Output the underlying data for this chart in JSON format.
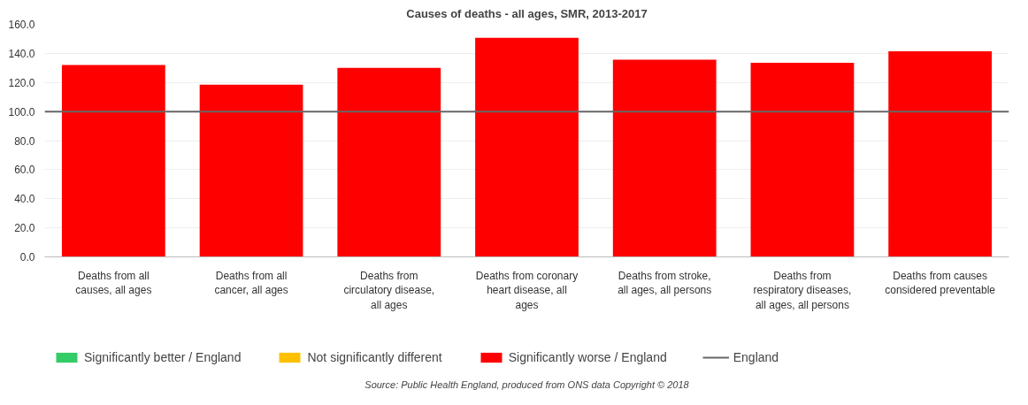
{
  "chart_data": {
    "type": "bar",
    "title": "Causes of deaths - all ages, SMR, 2013-2017",
    "categories": [
      "Deaths from all causes, all ages",
      "Deaths from all cancer, all ages",
      "Deaths from circulatory disease, all ages",
      "Deaths from coronary heart disease, all ages",
      "Deaths from stroke, all ages, all persons",
      "Deaths from respiratory diseases, all ages, all persons",
      "Deaths from causes considered preventable"
    ],
    "series": [
      {
        "name": "Significantly better / England",
        "color": "#33cc66",
        "values": [
          null,
          null,
          null,
          null,
          null,
          null,
          null
        ]
      },
      {
        "name": "Not significantly different",
        "color": "#ffc000",
        "values": [
          null,
          null,
          null,
          null,
          null,
          null,
          null
        ]
      },
      {
        "name": "Significantly worse / England",
        "color": "#ff0000",
        "values": [
          132,
          118.5,
          130,
          150.7,
          135.7,
          133.6,
          141.4
        ]
      }
    ],
    "ylim": [
      0,
      160
    ],
    "yticks": [
      {
        "value": 0,
        "label": "0.0"
      },
      {
        "value": 20,
        "label": "20.0"
      },
      {
        "value": 40,
        "label": "40.0"
      },
      {
        "value": 60,
        "label": "60.0"
      },
      {
        "value": 80,
        "label": "80.0"
      },
      {
        "value": 100,
        "label": "100.0"
      },
      {
        "value": 120,
        "label": "120.0"
      },
      {
        "value": 140,
        "label": "140.0"
      },
      {
        "value": 160,
        "label": "160.0"
      }
    ],
    "grid": "y",
    "ref_lines": [
      {
        "axis": "y",
        "value": 100,
        "label": "England",
        "color": "#666666"
      }
    ],
    "legend": "bottom",
    "annotations": [
      "Source: Public Health England, produced from ONS data Copyright © 2018"
    ]
  }
}
